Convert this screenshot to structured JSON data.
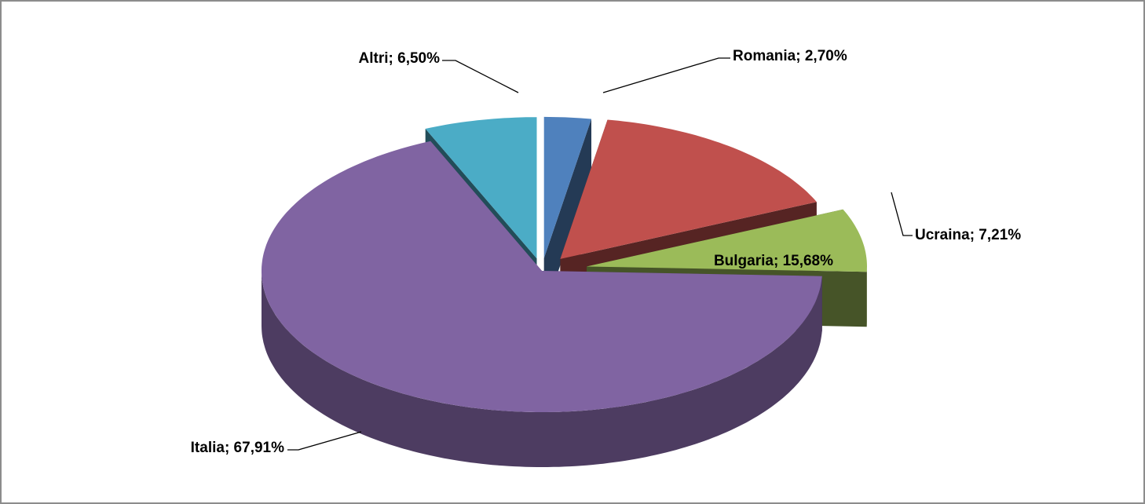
{
  "chart_data": {
    "type": "pie3d",
    "values": [
      2.7,
      15.68,
      7.21,
      67.91,
      6.5
    ],
    "value_labels": [
      "Romania; 2,70%",
      "Bulgaria; 15,68%",
      "Ucraina; 7,21%",
      "Italia; 67,91%",
      "Altri; 6,50%"
    ],
    "colors": [
      "#4f81bd",
      "#c0504d",
      "#9bbb59",
      "#8064a2",
      "#4bacc6"
    ]
  }
}
